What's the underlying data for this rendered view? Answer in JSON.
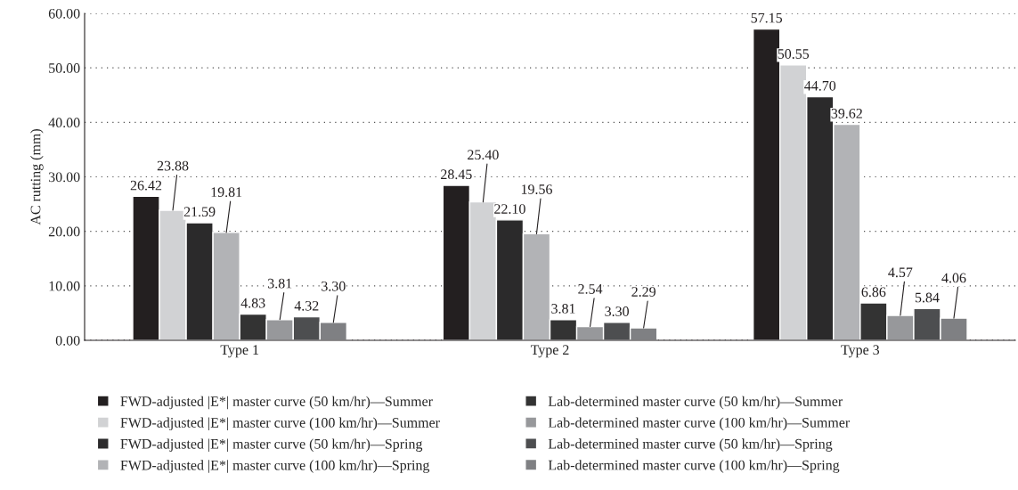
{
  "chart_data": {
    "type": "bar",
    "ylabel": "AC rutting (mm)",
    "categories": [
      "Type 1",
      "Type 2",
      "Type 3"
    ],
    "series": [
      {
        "name": "FWD-adjusted |E*| master curve (50 km/hr)—Summer",
        "color": "#231f20",
        "values": [
          26.42,
          28.45,
          57.15
        ],
        "value_labels": [
          "26.42",
          "28.45",
          "57.15"
        ]
      },
      {
        "name": "FWD-adjusted |E*| master curve (100 km/hr)—Summer",
        "color": "#d1d2d4",
        "values": [
          23.88,
          25.4,
          50.55
        ],
        "value_labels": [
          "23.88",
          "25.40",
          "50.55"
        ]
      },
      {
        "name": "FWD-adjusted |E*| master curve (50 km/hr)—Spring",
        "color": "#2b2a2b",
        "values": [
          21.59,
          22.1,
          44.7
        ],
        "value_labels": [
          "21.59",
          "22.10",
          "44.70"
        ]
      },
      {
        "name": "FWD-adjusted |E*| master curve (100 km/hr)—Spring",
        "color": "#b2b3b6",
        "values": [
          19.81,
          19.56,
          39.62
        ],
        "value_labels": [
          "19.81",
          "19.56",
          "39.62"
        ]
      },
      {
        "name": "Lab-determined master curve (50 km/hr)—Summer",
        "color": "#333333",
        "values": [
          4.83,
          3.81,
          6.86
        ],
        "value_labels": [
          "4.83",
          "3.81",
          "6.86"
        ]
      },
      {
        "name": "Lab-determined master curve (100 km/hr)—Summer",
        "color": "#97989b",
        "values": [
          3.81,
          2.54,
          4.57
        ],
        "value_labels": [
          "3.81",
          "2.54",
          "4.57"
        ]
      },
      {
        "name": "Lab-determined master curve (50 km/hr)—Spring",
        "color": "#4d4e50",
        "values": [
          4.32,
          3.3,
          5.84
        ],
        "value_labels": [
          "4.32",
          "3.30",
          "5.84"
        ]
      },
      {
        "name": "Lab-determined master curve (100 km/hr)—Spring",
        "color": "#7f8083",
        "values": [
          3.3,
          2.29,
          4.06
        ],
        "value_labels": [
          "3.30",
          "2.29",
          "4.06"
        ]
      }
    ],
    "ylim": [
      0,
      60
    ],
    "yticks": [
      {
        "value": 0,
        "label": "0.00"
      },
      {
        "value": 10,
        "label": "10.00"
      },
      {
        "value": 20,
        "label": "20.00"
      },
      {
        "value": 30,
        "label": "30.00"
      },
      {
        "value": 40,
        "label": "40.00"
      },
      {
        "value": 50,
        "label": "50.00"
      },
      {
        "value": 60,
        "label": "60.00"
      }
    ],
    "grid": "y",
    "legend": "bottom"
  }
}
